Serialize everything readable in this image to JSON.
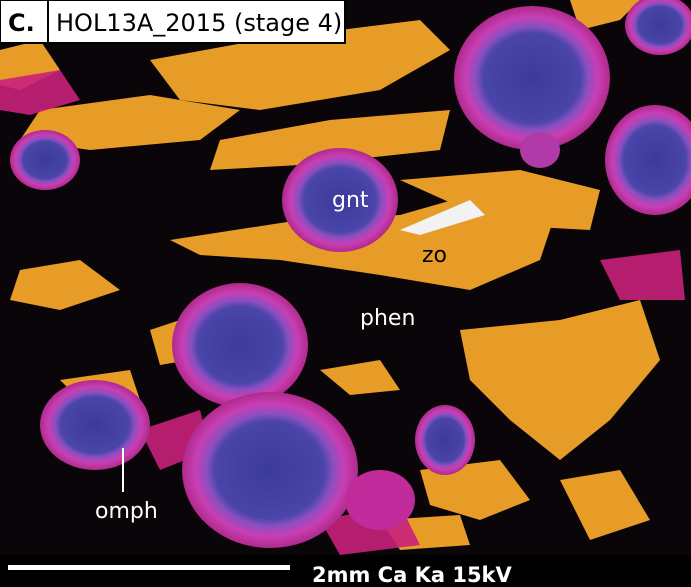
{
  "panel_label": "C.",
  "title": "HOL13A_2015 (stage 4)",
  "annotations": [
    "gnt",
    "zo",
    "phen",
    "omph"
  ],
  "scale_bar": "2mm Ca Ka 15kV"
}
